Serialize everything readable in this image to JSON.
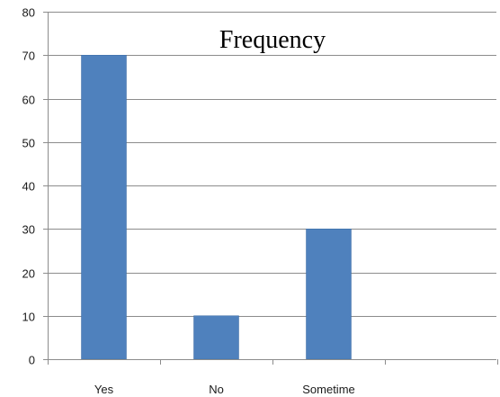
{
  "chart_data": {
    "type": "bar",
    "title": "Frequency",
    "categories": [
      "Yes",
      "No",
      "Sometime"
    ],
    "values": [
      70,
      10,
      30
    ],
    "ylim": [
      0,
      80
    ],
    "yticks": [
      0,
      10,
      20,
      30,
      40,
      50,
      60,
      70,
      80
    ],
    "grid": true,
    "legend": "none",
    "colors": {
      "bar": "#4f81bd",
      "bar_edge": "#3a6aa3",
      "grid": "#8c8c8c",
      "axis": "#8c8c8c"
    }
  }
}
